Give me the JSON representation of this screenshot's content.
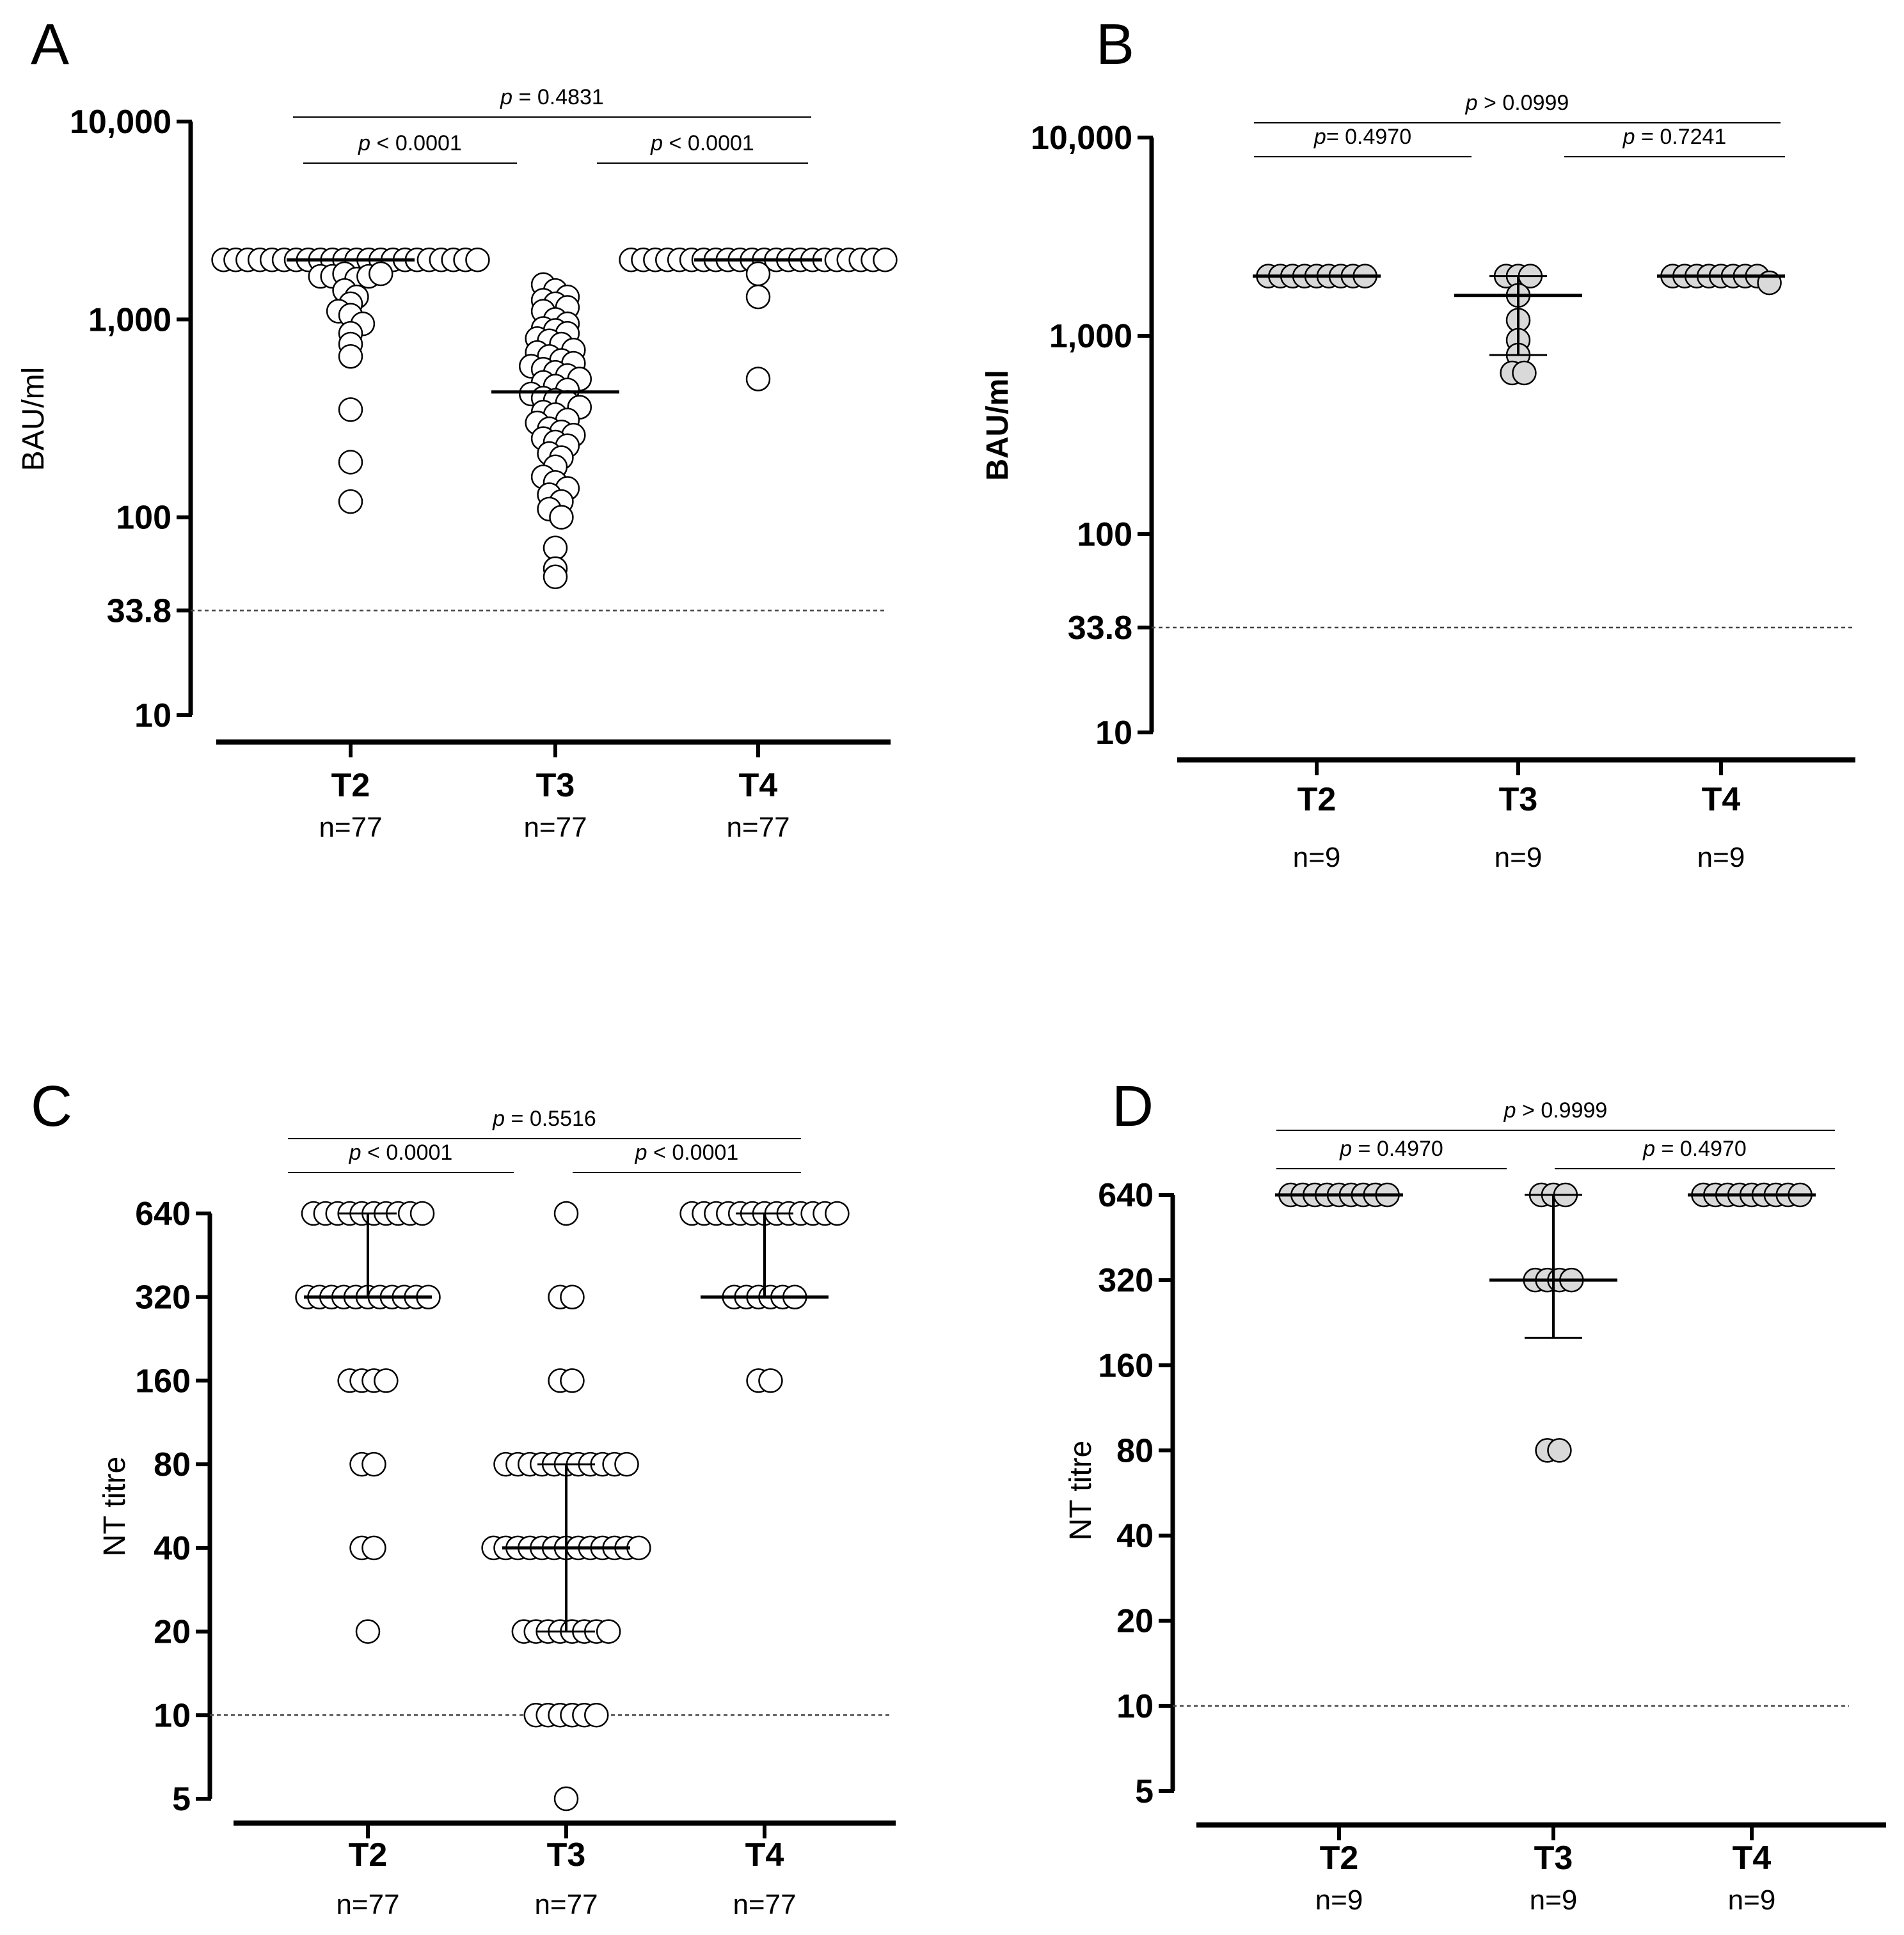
{
  "chart_data": [
    {
      "panel": "A",
      "type": "scatter",
      "ylabel": "BAU/ml",
      "y_scale": "log",
      "ylim": [
        10,
        10000
      ],
      "y_ticks": [
        "10,000",
        "1,000",
        "100",
        "33.8",
        "10"
      ],
      "threshold": 33.8,
      "categories": [
        "T2",
        "T3",
        "T4"
      ],
      "n_labels": [
        "n=77",
        "n=77",
        "n=77"
      ],
      "point_fill": "#ffffff",
      "comparisons": [
        {
          "from": "T2",
          "to": "T4",
          "p": "p",
          "text": " = 0.4831"
        },
        {
          "from": "T2",
          "to": "T3",
          "p": "p",
          "text": " < 0.0001"
        },
        {
          "from": "T3",
          "to": "T4",
          "p": "p",
          "text": " < 0.0001"
        }
      ],
      "series": [
        {
          "category": "T2",
          "median": 2000,
          "values": [
            2000,
            2000,
            2000,
            2000,
            2000,
            2000,
            2000,
            2000,
            2000,
            2000,
            2000,
            2000,
            2000,
            2000,
            2000,
            2000,
            2000,
            2000,
            2000,
            2000,
            2000,
            2000,
            1650,
            1650,
            1700,
            1600,
            1650,
            1700,
            1400,
            1300,
            1200,
            1100,
            1050,
            950,
            850,
            750,
            650,
            350,
            190,
            120
          ]
        },
        {
          "category": "T3",
          "median": 430,
          "values": [
            1500,
            1400,
            1300,
            1250,
            1200,
            1150,
            1100,
            1000,
            950,
            900,
            880,
            850,
            800,
            780,
            750,
            700,
            680,
            650,
            620,
            600,
            580,
            560,
            540,
            520,
            500,
            480,
            460,
            440,
            420,
            400,
            390,
            380,
            360,
            340,
            330,
            310,
            300,
            280,
            270,
            260,
            250,
            240,
            230,
            210,
            200,
            180,
            160,
            150,
            140,
            130,
            120,
            110,
            100,
            70,
            55,
            50
          ]
        },
        {
          "category": "T4",
          "median": 2000,
          "values": [
            2000,
            2000,
            2000,
            2000,
            2000,
            2000,
            2000,
            2000,
            2000,
            2000,
            2000,
            2000,
            2000,
            2000,
            2000,
            2000,
            2000,
            2000,
            2000,
            2000,
            2000,
            2000,
            1700,
            1300,
            500
          ]
        }
      ]
    },
    {
      "panel": "B",
      "type": "scatter",
      "ylabel": "BAU/ml",
      "y_scale": "log",
      "ylim": [
        10,
        10000
      ],
      "y_ticks": [
        "10,000",
        "1,000",
        "100",
        "33.8",
        "10"
      ],
      "threshold": 33.8,
      "categories": [
        "T2",
        "T3",
        "T4"
      ],
      "n_labels": [
        "n=9",
        "n=9",
        "n=9"
      ],
      "point_fill": "#d9d9d9",
      "comparisons": [
        {
          "from": "T2",
          "to": "T4",
          "p": "p",
          "text": " > 0.0999"
        },
        {
          "from": "T2",
          "to": "T3",
          "p": "p",
          "text": "= 0.4970"
        },
        {
          "from": "T3",
          "to": "T4",
          "p": "p",
          "text": " = 0.7241"
        }
      ],
      "series": [
        {
          "category": "T2",
          "median": 2000,
          "q1": 2000,
          "q3": 2000,
          "values": [
            2000,
            2000,
            2000,
            2000,
            2000,
            2000,
            2000,
            2000,
            2000
          ]
        },
        {
          "category": "T3",
          "median": 1600,
          "q1": 800,
          "q3": 2000,
          "values": [
            2000,
            2000,
            2000,
            1600,
            1200,
            950,
            800,
            650,
            650
          ]
        },
        {
          "category": "T4",
          "median": 2000,
          "q1": 2000,
          "q3": 2000,
          "values": [
            2000,
            2000,
            2000,
            2000,
            2000,
            2000,
            2000,
            2000,
            1850
          ]
        }
      ]
    },
    {
      "panel": "C",
      "type": "scatter",
      "ylabel": "NT titre",
      "y_scale": "log2",
      "ylim": [
        5,
        640
      ],
      "y_ticks": [
        "640",
        "320",
        "160",
        "80",
        "40",
        "20",
        "10",
        "5"
      ],
      "threshold": 10,
      "categories": [
        "T2",
        "T3",
        "T4"
      ],
      "n_labels": [
        "n=77",
        "n=77",
        "n=77"
      ],
      "point_fill": "#ffffff",
      "comparisons": [
        {
          "from": "T2",
          "to": "T4",
          "p": "p",
          "text": " = 0.5516"
        },
        {
          "from": "T2",
          "to": "T3",
          "p": "p",
          "text": " < 0.0001"
        },
        {
          "from": "T3",
          "to": "T4",
          "p": "p",
          "text": " < 0.0001"
        }
      ],
      "series": [
        {
          "category": "T2",
          "median": 320,
          "q1": 320,
          "q3": 640,
          "values": [
            640,
            640,
            640,
            640,
            640,
            640,
            640,
            640,
            640,
            640,
            320,
            320,
            320,
            320,
            320,
            320,
            320,
            320,
            320,
            320,
            320,
            160,
            160,
            160,
            160,
            80,
            80,
            40,
            40,
            20
          ]
        },
        {
          "category": "T3",
          "median": 40,
          "q1": 20,
          "q3": 80,
          "values": [
            640,
            320,
            320,
            160,
            160,
            80,
            80,
            80,
            80,
            80,
            80,
            80,
            80,
            80,
            80,
            80,
            40,
            40,
            40,
            40,
            40,
            40,
            40,
            40,
            40,
            40,
            40,
            40,
            40,
            20,
            20,
            20,
            20,
            20,
            20,
            20,
            20,
            10,
            10,
            10,
            10,
            10,
            10,
            5
          ]
        },
        {
          "category": "T4",
          "median": 320,
          "q1": 320,
          "q3": 640,
          "values": [
            640,
            640,
            640,
            640,
            640,
            640,
            640,
            640,
            640,
            640,
            640,
            640,
            640,
            320,
            320,
            320,
            320,
            320,
            320,
            160,
            160
          ]
        }
      ]
    },
    {
      "panel": "D",
      "type": "scatter",
      "ylabel": "NT titre",
      "y_scale": "log2",
      "ylim": [
        5,
        640
      ],
      "y_ticks": [
        "640",
        "320",
        "160",
        "80",
        "40",
        "20",
        "10",
        "5"
      ],
      "threshold": 10,
      "categories": [
        "T2",
        "T3",
        "T4"
      ],
      "n_labels": [
        "n=9",
        "n=9",
        "n=9"
      ],
      "point_fill": "#d9d9d9",
      "comparisons": [
        {
          "from": "T2",
          "to": "T4",
          "p": "p",
          "text": " > 0.9999"
        },
        {
          "from": "T2",
          "to": "T3",
          "p": "p",
          "text": " = 0.4970"
        },
        {
          "from": "T3",
          "to": "T4",
          "p": "p",
          "text": " = 0.4970"
        }
      ],
      "series": [
        {
          "category": "T2",
          "median": 640,
          "q1": 640,
          "q3": 640,
          "values": [
            640,
            640,
            640,
            640,
            640,
            640,
            640,
            640,
            640
          ]
        },
        {
          "category": "T3",
          "median": 320,
          "q1": 200,
          "q3": 640,
          "values": [
            640,
            640,
            640,
            320,
            320,
            320,
            320,
            80,
            80
          ]
        },
        {
          "category": "T4",
          "median": 640,
          "q1": 640,
          "q3": 640,
          "values": [
            640,
            640,
            640,
            640,
            640,
            640,
            640,
            640,
            640
          ]
        }
      ]
    }
  ]
}
